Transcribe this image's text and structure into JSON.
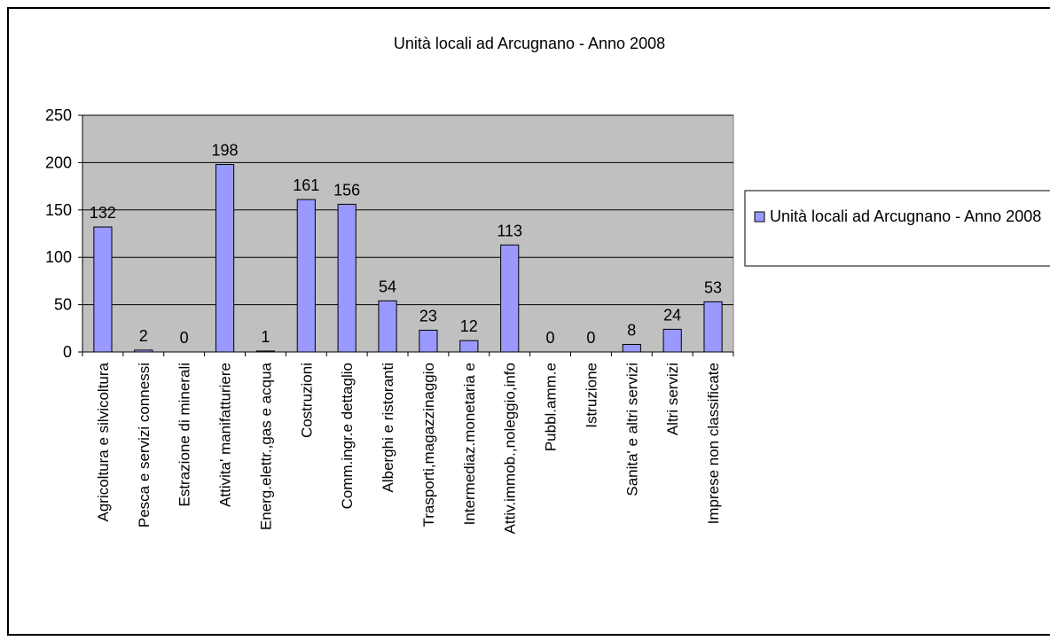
{
  "chart_data": {
    "type": "bar",
    "title": "Unità locali ad Arcugnano - Anno 2008",
    "categories": [
      "Agricoltura e silvicoltura",
      "Pesca e servizi connessi",
      "Estrazione di minerali",
      "Attivita' manifatturiere",
      "Energ.elettr.,gas e acqua",
      "Costruzioni",
      "Comm.ingr.e dettaglio",
      "Alberghi e ristoranti",
      "Trasporti,magazzinaggio",
      "Intermediaz.monetaria e",
      "Attiv.immob.,noleggio,info",
      "Pubbl.amm.e",
      "Istruzione",
      "Sanita' e altri servizi",
      "Altri servizi",
      "Imprese non classificate"
    ],
    "series": [
      {
        "name": "Unità locali ad Arcugnano - Anno 2008",
        "color": "#9999ff",
        "values": [
          132,
          2,
          0,
          198,
          1,
          161,
          156,
          54,
          23,
          12,
          113,
          0,
          0,
          8,
          24,
          53
        ]
      }
    ],
    "ylim": [
      0,
      250
    ],
    "yticks": [
      0,
      50,
      100,
      150,
      200,
      250
    ],
    "grid": true,
    "legend": "right"
  }
}
